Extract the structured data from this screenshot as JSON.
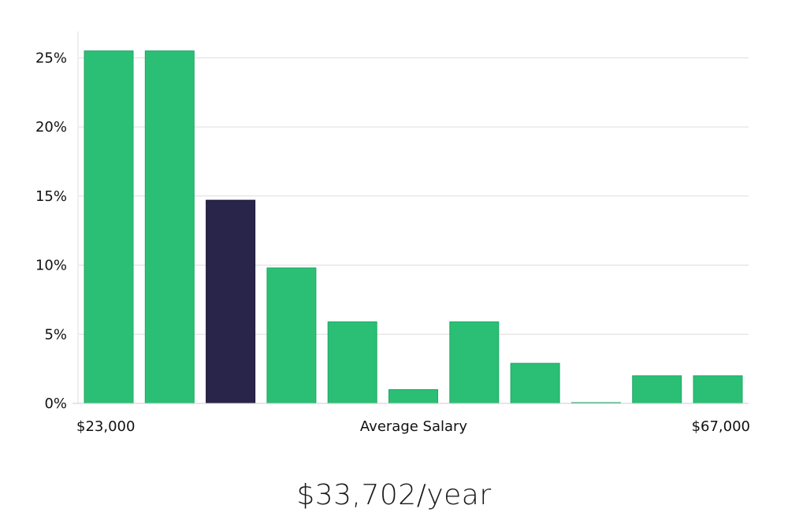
{
  "chart_data": {
    "type": "bar",
    "x_min_label": "$23,000",
    "x_max_label": "$67,000",
    "xlabel": "Average Salary",
    "ylabel": "",
    "y_ticks": [
      "0%",
      "5%",
      "10%",
      "15%",
      "20%",
      "25%"
    ],
    "ylim": [
      0,
      26.9
    ],
    "grid": true,
    "values": [
      25.5,
      25.5,
      14.7,
      9.8,
      5.9,
      1.0,
      5.9,
      2.9,
      0.05,
      2.0,
      2.0
    ],
    "highlight_index": 2,
    "colors": {
      "bar": "#2abf75",
      "highlight": "#29254a",
      "grid": "#dddddd"
    }
  },
  "summary": {
    "average_salary": "$33,702/year"
  }
}
